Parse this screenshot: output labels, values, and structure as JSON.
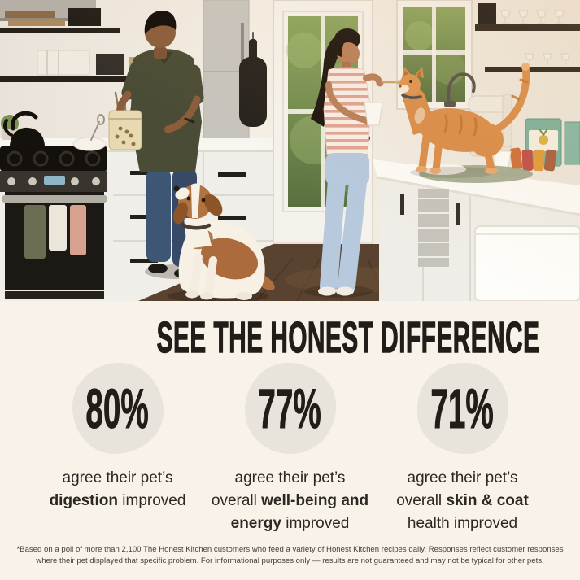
{
  "colors": {
    "page_background": "#f8f2e9",
    "headline_text": "#211d18",
    "stat_circle": "#e9e4db",
    "body_text": "#2b2723",
    "footnote_text": "#45403a"
  },
  "photo": {
    "description": "Kitchen scene: a man prepares pet food at the counter while a brown-and-white dog begs, and a woman spoon-feeds an orange tabby cat standing on the opposite counter"
  },
  "headline": "SEE THE HONEST DIFFERENCE",
  "stats": [
    {
      "percent": "80%",
      "caption_parts": [
        {
          "text": "agree their pet’s"
        },
        {
          "break": true
        },
        {
          "text": "digestion",
          "bold": true
        },
        {
          "text": " improved"
        }
      ]
    },
    {
      "percent": "77%",
      "caption_parts": [
        {
          "text": "agree their pet’s"
        },
        {
          "break": true
        },
        {
          "text": "overall "
        },
        {
          "text": "well-being and",
          "bold": true
        },
        {
          "break": true
        },
        {
          "text": "energy",
          "bold": true
        },
        {
          "text": " improved"
        }
      ]
    },
    {
      "percent": "71%",
      "caption_parts": [
        {
          "text": "agree their pet’s"
        },
        {
          "break": true
        },
        {
          "text": "overall "
        },
        {
          "text": "skin & coat",
          "bold": true
        },
        {
          "break": true
        },
        {
          "text": "health improved"
        }
      ]
    }
  ],
  "footnote": "*Based on a poll of more than 2,100 The Honest Kitchen customers who feed a variety of Honest Kitchen recipes daily. Responses reflect customer responses where their pet displayed that specific problem. For informational purposes only — results are not guaranteed and may not be typical for other pets."
}
